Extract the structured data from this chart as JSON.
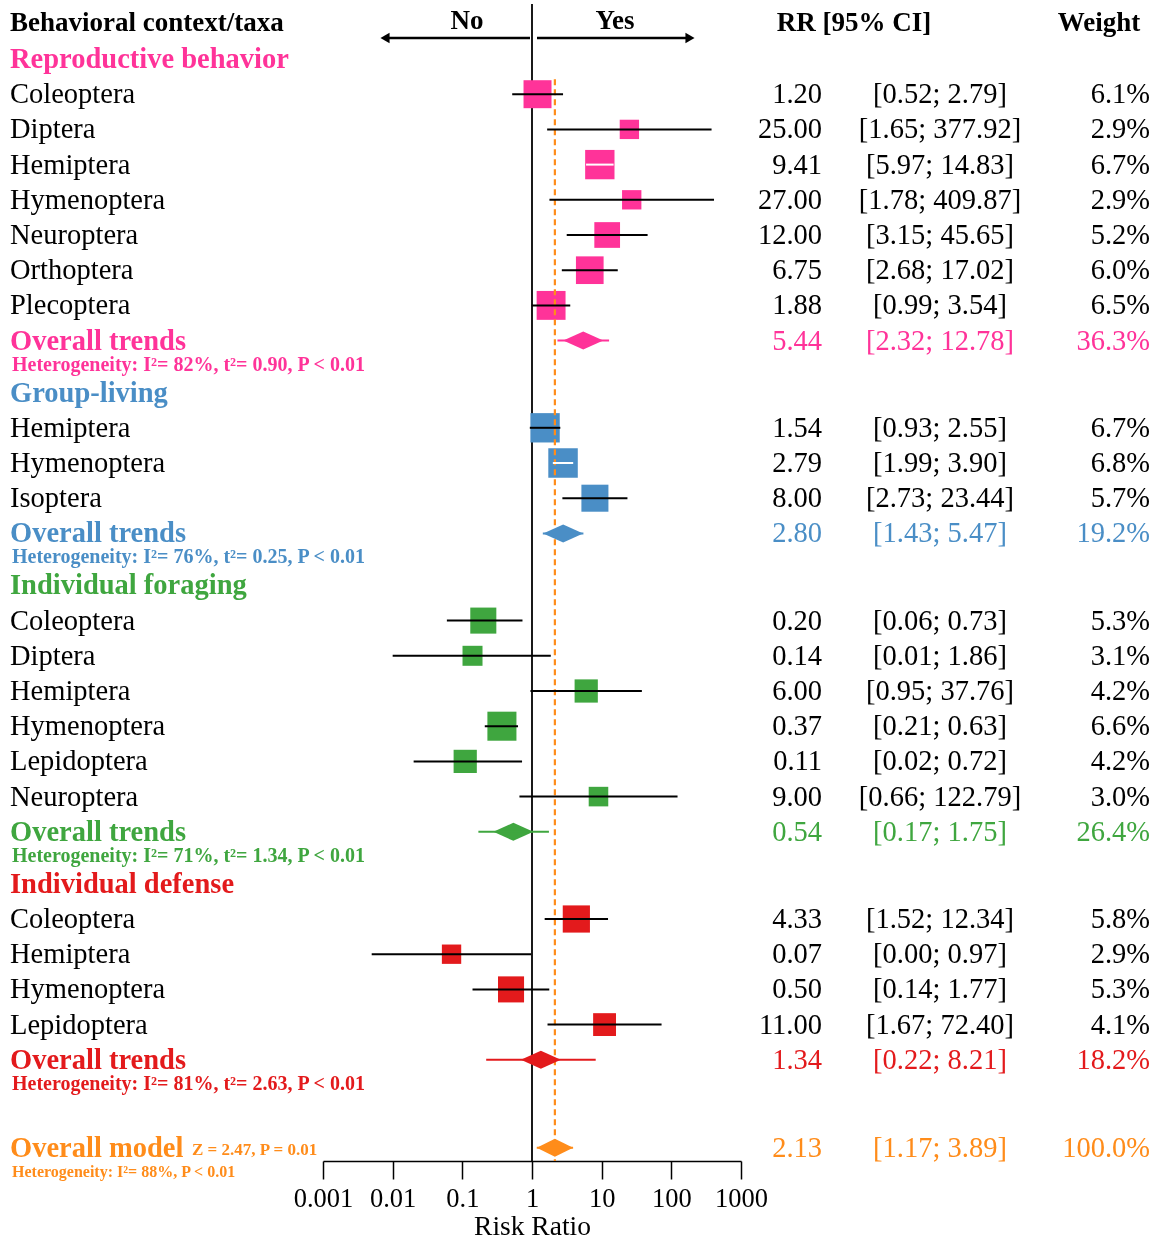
{
  "chart_data": {
    "type": "bubble",
    "orientation": "horizontal",
    "ylabel": "Behavioral context/taxa",
    "xlabel": "Risk Ratio",
    "categories": [
      "Coleoptera",
      "Diptera",
      "Hemiptera",
      "Hymenoptera",
      "Neuroptera",
      "Orthoptera",
      "Plecoptera",
      "Overall trends",
      "Hemiptera",
      "Hymenoptera",
      "Isoptera",
      "Overall trends",
      "Coleoptera",
      "Diptera",
      "Hemiptera",
      "Hymenoptera",
      "Lepidoptera",
      "Neuroptera",
      "Overall trends",
      "Coleoptera",
      "Hemiptera",
      "Hymenoptera",
      "Lepidoptera",
      "Overall trends",
      "Overall model"
    ],
    "series": [
      {
        "name": "Reproductive behavior",
        "color": "#ff3399",
        "marker": "square",
        "values": [
          1.2,
          25.0,
          9.41,
          27.0,
          12.0,
          6.75,
          1.88,
          null,
          null,
          null,
          null,
          null,
          null,
          null,
          null,
          null,
          null,
          null,
          null,
          null,
          null,
          null,
          null,
          null,
          null
        ],
        "errors": [
          [
            0.52,
            2.79
          ],
          [
            1.65,
            377.92
          ],
          [
            5.97,
            14.83
          ],
          [
            1.78,
            409.87
          ],
          [
            3.15,
            45.65
          ],
          [
            2.68,
            17.02
          ],
          [
            0.99,
            3.54
          ],
          null,
          null,
          null,
          null,
          null,
          null,
          null,
          null,
          null,
          null,
          null,
          null,
          null,
          null,
          null,
          null,
          null,
          null
        ],
        "sizes": [
          0.9,
          0.43,
          0.99,
          0.43,
          0.76,
          0.88,
          0.96,
          null,
          null,
          null,
          null,
          null,
          null,
          null,
          null,
          null,
          null,
          null,
          null,
          null,
          null,
          null,
          null,
          null,
          null
        ],
        "value_labels": [
          "1.20 [0.52; 2.79] 6.1%",
          "25.00 [1.65; 377.92] 2.9%",
          "9.41 [5.97; 14.83] 6.7%",
          "27.00 [1.78; 409.87] 2.9%",
          "12.00 [3.15; 45.65] 5.2%",
          "6.75 [2.68; 17.02] 6.0%",
          "1.88 [0.99; 3.54] 6.5%",
          null,
          null,
          null,
          null,
          null,
          null,
          null,
          null,
          null,
          null,
          null,
          null,
          null,
          null,
          null,
          null,
          null,
          null
        ]
      },
      {
        "color": "#ff3399",
        "type": "scatter",
        "marker": "diamond",
        "values": [
          null,
          null,
          null,
          null,
          null,
          null,
          null,
          5.44,
          null,
          null,
          null,
          null,
          null,
          null,
          null,
          null,
          null,
          null,
          null,
          null,
          null,
          null,
          null,
          null,
          null
        ],
        "errors": [
          null,
          null,
          null,
          null,
          null,
          null,
          null,
          [
            2.32,
            12.78
          ],
          null,
          null,
          null,
          null,
          null,
          null,
          null,
          null,
          null,
          null,
          null,
          null,
          null,
          null,
          null,
          null,
          null
        ],
        "value_labels": [
          null,
          null,
          null,
          null,
          null,
          null,
          null,
          "5.44 [2.32; 12.78] 36.3%",
          null,
          null,
          null,
          null,
          null,
          null,
          null,
          null,
          null,
          null,
          null,
          null,
          null,
          null,
          null,
          null,
          null
        ]
      },
      {
        "name": "Group-living",
        "color": "#4a8ec6",
        "marker": "square",
        "values": [
          null,
          null,
          null,
          null,
          null,
          null,
          null,
          null,
          1.54,
          2.79,
          8.0,
          null,
          null,
          null,
          null,
          null,
          null,
          null,
          null,
          null,
          null,
          null,
          null,
          null,
          null
        ],
        "errors": [
          null,
          null,
          null,
          null,
          null,
          null,
          null,
          null,
          [
            0.93,
            2.55
          ],
          [
            1.99,
            3.9
          ],
          [
            2.73,
            23.44
          ],
          null,
          null,
          null,
          null,
          null,
          null,
          null,
          null,
          null,
          null,
          null,
          null,
          null,
          null
        ],
        "sizes": [
          null,
          null,
          null,
          null,
          null,
          null,
          null,
          null,
          0.99,
          1,
          0.84,
          null,
          null,
          null,
          null,
          null,
          null,
          null,
          null,
          null,
          null,
          null,
          null,
          null,
          null
        ],
        "value_labels": [
          null,
          null,
          null,
          null,
          null,
          null,
          null,
          null,
          "1.54 [0.93; 2.55] 6.7%",
          "2.79 [1.99; 3.90] 6.8%",
          "8.00 [2.73; 23.44] 5.7%",
          null,
          null,
          null,
          null,
          null,
          null,
          null,
          null,
          null,
          null,
          null,
          null,
          null,
          null
        ]
      },
      {
        "color": "#4a8ec6",
        "type": "scatter",
        "marker": "diamond",
        "values": [
          null,
          null,
          null,
          null,
          null,
          null,
          null,
          null,
          null,
          null,
          null,
          2.8,
          null,
          null,
          null,
          null,
          null,
          null,
          null,
          null,
          null,
          null,
          null,
          null,
          null
        ],
        "errors": [
          null,
          null,
          null,
          null,
          null,
          null,
          null,
          null,
          null,
          null,
          null,
          [
            1.43,
            5.47
          ],
          null,
          null,
          null,
          null,
          null,
          null,
          null,
          null,
          null,
          null,
          null,
          null,
          null
        ],
        "value_labels": [
          null,
          null,
          null,
          null,
          null,
          null,
          null,
          null,
          null,
          null,
          null,
          "2.80 [1.43; 5.47] 19.2%",
          null,
          null,
          null,
          null,
          null,
          null,
          null,
          null,
          null,
          null,
          null,
          null,
          null
        ]
      },
      {
        "name": "Individual foraging",
        "color": "#3fa63f",
        "marker": "square",
        "values": [
          null,
          null,
          null,
          null,
          null,
          null,
          null,
          null,
          null,
          null,
          null,
          null,
          0.2,
          0.14,
          6.0,
          0.37,
          0.11,
          9.0,
          null,
          null,
          null,
          null,
          null,
          null,
          null
        ],
        "errors": [
          null,
          null,
          null,
          null,
          null,
          null,
          null,
          null,
          null,
          null,
          null,
          null,
          [
            0.06,
            0.73
          ],
          [
            0.01,
            1.86
          ],
          [
            0.95,
            37.76
          ],
          [
            0.21,
            0.63
          ],
          [
            0.02,
            0.72
          ],
          [
            0.66,
            122.79
          ],
          null,
          null,
          null,
          null,
          null,
          null,
          null
        ],
        "sizes": [
          null,
          null,
          null,
          null,
          null,
          null,
          null,
          null,
          null,
          null,
          null,
          null,
          0.78,
          0.46,
          0.62,
          0.97,
          0.62,
          0.44,
          null,
          null,
          null,
          null,
          null,
          null,
          null
        ],
        "value_labels": [
          null,
          null,
          null,
          null,
          null,
          null,
          null,
          null,
          null,
          null,
          null,
          null,
          "0.20 [0.06; 0.73] 5.3%",
          "0.14 [0.01; 1.86] 3.1%",
          "6.00 [0.95; 37.76] 4.2%",
          "0.37 [0.21; 0.63] 6.6%",
          "0.11 [0.02; 0.72] 4.2%",
          "9.00 [0.66; 122.79] 3.0%",
          null,
          null,
          null,
          null,
          null,
          null,
          null
        ]
      },
      {
        "color": "#3fa63f",
        "type": "scatter",
        "marker": "diamond",
        "values": [
          null,
          null,
          null,
          null,
          null,
          null,
          null,
          null,
          null,
          null,
          null,
          null,
          null,
          null,
          null,
          null,
          null,
          null,
          0.54,
          null,
          null,
          null,
          null,
          null,
          null
        ],
        "errors": [
          null,
          null,
          null,
          null,
          null,
          null,
          null,
          null,
          null,
          null,
          null,
          null,
          null,
          null,
          null,
          null,
          null,
          null,
          [
            0.17,
            1.75
          ],
          null,
          null,
          null,
          null,
          null,
          null
        ],
        "value_labels": [
          null,
          null,
          null,
          null,
          null,
          null,
          null,
          null,
          null,
          null,
          null,
          null,
          null,
          null,
          null,
          null,
          null,
          null,
          "0.54 [0.17; 1.75] 26.4%",
          null,
          null,
          null,
          null,
          null,
          null
        ]
      },
      {
        "name": "Individual defense",
        "color": "#e31a1c",
        "marker": "square",
        "values": [
          null,
          null,
          null,
          null,
          null,
          null,
          null,
          null,
          null,
          null,
          null,
          null,
          null,
          null,
          null,
          null,
          null,
          null,
          null,
          4.33,
          0.07,
          0.5,
          11.0,
          null,
          null
        ],
        "errors": [
          null,
          null,
          null,
          null,
          null,
          null,
          null,
          null,
          null,
          null,
          null,
          null,
          null,
          null,
          null,
          null,
          null,
          null,
          null,
          [
            1.52,
            12.34
          ],
          [
            0.005,
            0.97
          ],
          [
            0.14,
            1.77
          ],
          [
            1.67,
            72.4
          ],
          null,
          null
        ],
        "sizes": [
          null,
          null,
          null,
          null,
          null,
          null,
          null,
          null,
          null,
          null,
          null,
          null,
          null,
          null,
          null,
          null,
          null,
          null,
          null,
          0.85,
          0.43,
          0.78,
          0.6,
          null,
          null
        ],
        "value_labels": [
          null,
          null,
          null,
          null,
          null,
          null,
          null,
          null,
          null,
          null,
          null,
          null,
          null,
          null,
          null,
          null,
          null,
          null,
          null,
          "4.33 [1.52; 12.34] 5.8%",
          "0.07 [0.00; 0.97] 2.9%",
          "0.50 [0.14; 1.77] 5.3%",
          "11.00 [1.67; 72.40] 4.1%",
          null,
          null
        ]
      },
      {
        "color": "#e31a1c",
        "type": "scatter",
        "marker": "diamond",
        "values": [
          null,
          null,
          null,
          null,
          null,
          null,
          null,
          null,
          null,
          null,
          null,
          null,
          null,
          null,
          null,
          null,
          null,
          null,
          null,
          null,
          null,
          null,
          null,
          1.34,
          null
        ],
        "errors": [
          null,
          null,
          null,
          null,
          null,
          null,
          null,
          null,
          null,
          null,
          null,
          null,
          null,
          null,
          null,
          null,
          null,
          null,
          null,
          null,
          null,
          null,
          null,
          [
            0.22,
            8.21
          ],
          null
        ],
        "value_labels": [
          null,
          null,
          null,
          null,
          null,
          null,
          null,
          null,
          null,
          null,
          null,
          null,
          null,
          null,
          null,
          null,
          null,
          null,
          null,
          null,
          null,
          null,
          null,
          "1.34 [0.22; 8.21] 18.2%",
          null
        ]
      },
      {
        "color": "#ff8c1a",
        "type": "scatter",
        "marker": "diamond",
        "values": [
          null,
          null,
          null,
          null,
          null,
          null,
          null,
          null,
          null,
          null,
          null,
          null,
          null,
          null,
          null,
          null,
          null,
          null,
          null,
          null,
          null,
          null,
          null,
          null,
          2.13
        ],
        "errors": [
          null,
          null,
          null,
          null,
          null,
          null,
          null,
          null,
          null,
          null,
          null,
          null,
          null,
          null,
          null,
          null,
          null,
          null,
          null,
          null,
          null,
          null,
          null,
          null,
          [
            1.17,
            3.89
          ]
        ],
        "value_labels": [
          null,
          null,
          null,
          null,
          null,
          null,
          null,
          null,
          null,
          null,
          null,
          null,
          null,
          null,
          null,
          null,
          null,
          null,
          null,
          null,
          null,
          null,
          null,
          null,
          "2.13 [1.17; 3.89] 100.0%"
        ]
      }
    ],
    "xlim": [
      0.001,
      1000
    ],
    "xticks": [
      0.001,
      0.01,
      0.1,
      1,
      10,
      100,
      1000
    ],
    "log": "x",
    "ref_lines": [
      {
        "axis": "x",
        "value": 1,
        "color": "#000000"
      },
      {
        "axis": "x",
        "value": 2.13,
        "color": "#ff8c1a",
        "line_style": "dashed"
      }
    ],
    "annotations": [
      "No",
      "Yes",
      "RR [95% CI]",
      "Weight",
      "Heterogeneity: I²= 82%, t²= 0.90, P < 0.01",
      "Heterogeneity: I²= 76%, t²= 0.25, P < 0.01",
      "Heterogeneity: I²= 71%, t²= 1.34, P < 0.01",
      "Heterogeneity: I²= 81%, t²= 2.63, P < 0.01",
      "Z = 2.47, P = 0.01",
      "Heterogeneity: I²= 88%, P < 0.01"
    ]
  }
}
